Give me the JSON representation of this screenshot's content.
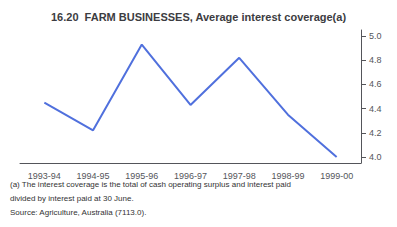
{
  "chart_data": {
    "type": "line",
    "title": "16.20  FARM BUSINESSES, Average interest coverage(a)",
    "categories": [
      "1993-94",
      "1994-95",
      "1995-96",
      "1996-97",
      "1997-98",
      "1998-99",
      "1999-00"
    ],
    "values": [
      4.45,
      4.22,
      4.93,
      4.43,
      4.82,
      4.35,
      4.0
    ],
    "ylim": [
      3.95,
      5.05
    ],
    "yticks": [
      {
        "value": 4.0,
        "label": "4.0"
      },
      {
        "value": 4.2,
        "label": "4.2"
      },
      {
        "value": 4.4,
        "label": "4.4"
      },
      {
        "value": 4.6,
        "label": "4.6"
      },
      {
        "value": 4.8,
        "label": "4.8"
      },
      {
        "value": 5.0,
        "label": "5.0"
      }
    ],
    "grid": false,
    "annotations": [
      "(a) The interest coverage is the total of cash operating surplus and interest paid",
      "divided by interest paid at 30 June.",
      "Source: Agriculture, Australia (7113.0)."
    ]
  }
}
